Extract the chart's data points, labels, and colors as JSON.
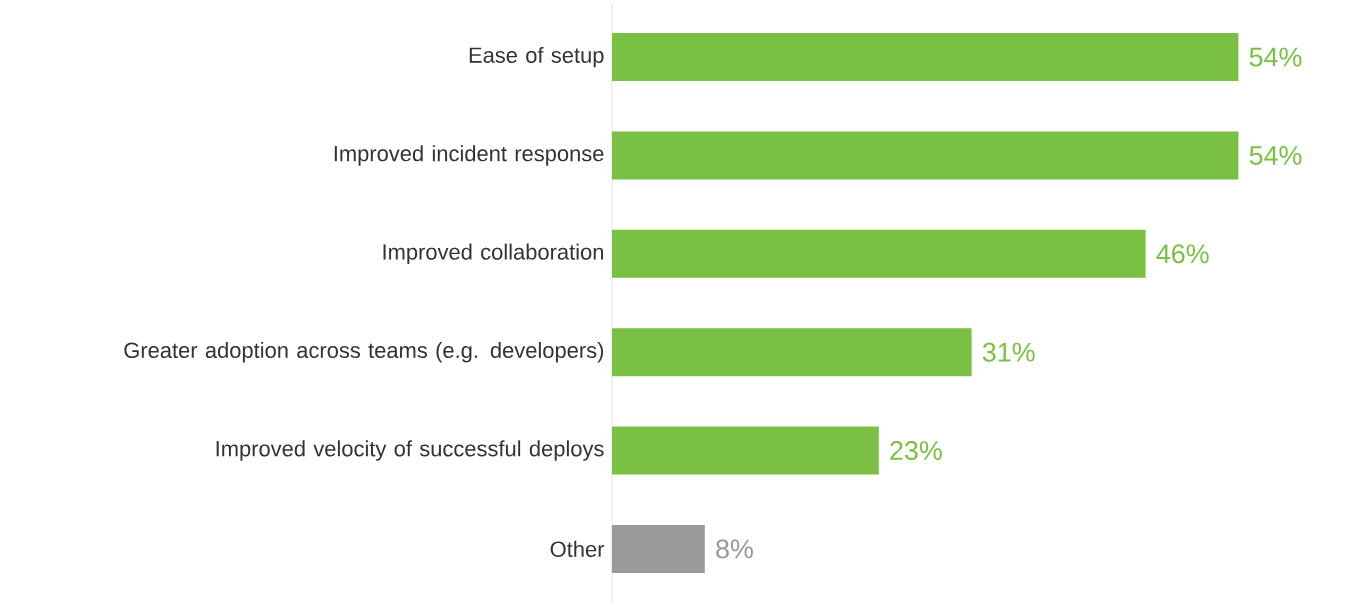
{
  "chart_data": {
    "type": "bar",
    "orientation": "horizontal",
    "categories": [
      "Ease of setup",
      "Improved incident response",
      "Improved collaboration",
      "Greater adoption across teams (e.g. developers)",
      "Improved velocity of successful deploys",
      "Other"
    ],
    "values": [
      54,
      54,
      46,
      31,
      23,
      8
    ],
    "colors": [
      "#7ac143",
      "#7ac143",
      "#7ac143",
      "#7ac143",
      "#7ac143",
      "#999999"
    ],
    "value_labels": [
      "54%",
      "54%",
      "46%",
      "31%",
      "23%",
      "8%"
    ]
  }
}
